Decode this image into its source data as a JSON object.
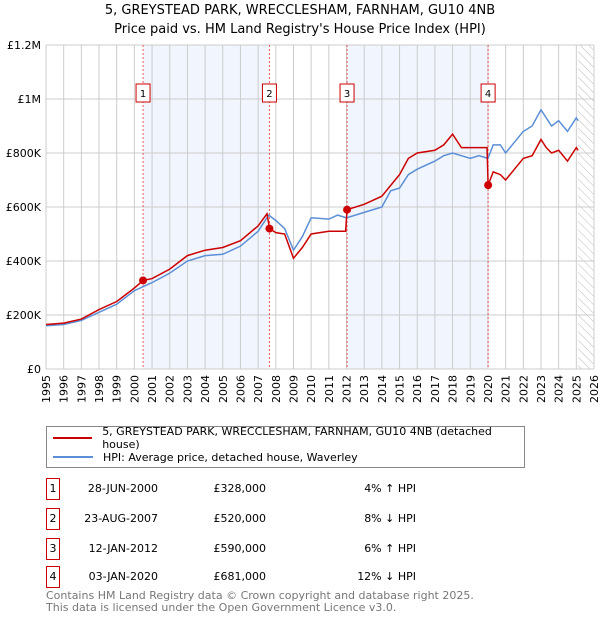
{
  "chart_data": {
    "type": "line",
    "title": "5, GREYSTEAD PARK, WRECCLESHAM, FARNHAM, GU10 4NB",
    "subtitle": "Price paid vs. HM Land Registry's House Price Index (HPI)",
    "xlim": [
      1995,
      2026
    ],
    "ylim": [
      0,
      1200000
    ],
    "y_ticks": [
      {
        "v": 0,
        "label": "£0"
      },
      {
        "v": 200000,
        "label": "£200K"
      },
      {
        "v": 400000,
        "label": "£400K"
      },
      {
        "v": 600000,
        "label": "£600K"
      },
      {
        "v": 800000,
        "label": "£800K"
      },
      {
        "v": 1000000,
        "label": "£1M"
      },
      {
        "v": 1200000,
        "label": "£1.2M"
      }
    ],
    "x_ticks": [
      "1995",
      "1996",
      "1997",
      "1998",
      "1999",
      "2000",
      "2001",
      "2002",
      "2003",
      "2004",
      "2005",
      "2006",
      "2007",
      "2008",
      "2009",
      "2010",
      "2011",
      "2012",
      "2013",
      "2014",
      "2015",
      "2016",
      "2017",
      "2018",
      "2019",
      "2020",
      "2021",
      "2022",
      "2023",
      "2024",
      "2025",
      "2026"
    ],
    "grid": true,
    "forecast_from": 2025.1,
    "series": [
      {
        "name": "5, GREYSTEAD PARK, WRECCLESHAM, FARNHAM, GU10 4NB (detached house)",
        "color": "#cc0000",
        "x": [
          1995,
          1996,
          1997,
          1998,
          1999,
          2000,
          2000.5,
          2001,
          2002,
          2003,
          2004,
          2005,
          2006,
          2007,
          2007.5,
          2007.65,
          2008,
          2008.5,
          2009,
          2009.5,
          2010,
          2011,
          2011.95,
          2012.03,
          2013,
          2014,
          2014.5,
          2015,
          2015.5,
          2016,
          2017,
          2017.5,
          2018,
          2018.5,
          2019,
          2019.95,
          2020.01,
          2020.3,
          2020.7,
          2021,
          2021.5,
          2022,
          2022.5,
          2023,
          2023.3,
          2023.6,
          2024,
          2024.5,
          2025,
          2025.1
        ],
        "y": [
          165000,
          170000,
          185000,
          220000,
          250000,
          300000,
          328000,
          335000,
          370000,
          420000,
          440000,
          450000,
          475000,
          530000,
          575000,
          520000,
          505000,
          500000,
          410000,
          450000,
          500000,
          510000,
          510000,
          590000,
          610000,
          640000,
          680000,
          720000,
          780000,
          800000,
          810000,
          830000,
          870000,
          820000,
          820000,
          820000,
          681000,
          730000,
          720000,
          700000,
          740000,
          780000,
          790000,
          850000,
          820000,
          800000,
          810000,
          770000,
          820000,
          810000
        ]
      },
      {
        "name": "HPI: Average price, detached house, Waverley",
        "color": "#5b8fd6",
        "x": [
          1995,
          1996,
          1997,
          1998,
          1999,
          2000,
          2001,
          2002,
          2003,
          2004,
          2005,
          2006,
          2007,
          2007.6,
          2008,
          2008.5,
          2009,
          2009.5,
          2010,
          2011,
          2011.5,
          2012,
          2013,
          2014,
          2014.5,
          2015,
          2015.5,
          2016,
          2017,
          2017.5,
          2018,
          2018.5,
          2019,
          2019.5,
          2020,
          2020.3,
          2020.7,
          2021,
          2021.5,
          2022,
          2022.5,
          2023,
          2023.3,
          2023.6,
          2024,
          2024.5,
          2025,
          2025.1
        ],
        "y": [
          160000,
          165000,
          180000,
          210000,
          240000,
          290000,
          320000,
          355000,
          400000,
          420000,
          425000,
          455000,
          510000,
          570000,
          550000,
          520000,
          440000,
          490000,
          560000,
          555000,
          570000,
          560000,
          580000,
          600000,
          660000,
          670000,
          720000,
          740000,
          770000,
          790000,
          800000,
          790000,
          780000,
          790000,
          780000,
          830000,
          830000,
          800000,
          840000,
          880000,
          900000,
          960000,
          930000,
          900000,
          920000,
          880000,
          930000,
          920000
        ]
      }
    ],
    "sales": [
      {
        "n": "1",
        "x": 2000.49,
        "price": 328000
      },
      {
        "n": "2",
        "x": 2007.64,
        "price": 520000
      },
      {
        "n": "3",
        "x": 2012.03,
        "price": 590000
      },
      {
        "n": "4",
        "x": 2020.01,
        "price": 681000
      }
    ],
    "shaded_ranges": [
      [
        2000.49,
        2007.64
      ],
      [
        2012.03,
        2020.01
      ]
    ]
  },
  "table": [
    {
      "n": "1",
      "date": "28-JUN-2000",
      "price": "£328,000",
      "hpi": "4% ↑ HPI"
    },
    {
      "n": "2",
      "date": "23-AUG-2007",
      "price": "£520,000",
      "hpi": "8% ↓ HPI"
    },
    {
      "n": "3",
      "date": "12-JAN-2012",
      "price": "£590,000",
      "hpi": "6% ↑ HPI"
    },
    {
      "n": "4",
      "date": "03-JAN-2020",
      "price": "£681,000",
      "hpi": "12% ↓ HPI"
    }
  ],
  "footer": {
    "line1": "Contains HM Land Registry data © Crown copyright and database right 2025.",
    "line2": "This data is licensed under the Open Government Licence v3.0."
  }
}
